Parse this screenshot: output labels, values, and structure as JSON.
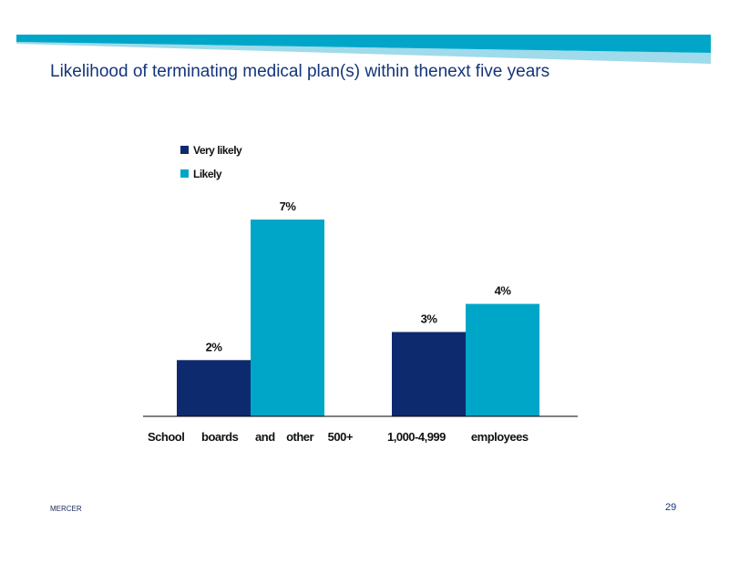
{
  "slide": {
    "title": "Likelihood of terminating medical plan(s) within thenext five years",
    "footer_brand": "MERCER",
    "page_number": "29"
  },
  "colors": {
    "accent_band": "#00a6c8",
    "accent_band_light": "#9fdbea",
    "title_color": "#14357a"
  },
  "chart_data": {
    "type": "bar",
    "categories": [
      "School      boards      and    other     500+",
      "1,000-4,999         employees"
    ],
    "series": [
      {
        "name": "Very      likely",
        "values": [
          2,
          3
        ],
        "labels": [
          "2%",
          "3%"
        ],
        "color": "#0e2a6e"
      },
      {
        "name": "Likely",
        "values": [
          7,
          4
        ],
        "labels": [
          "7%",
          "4%"
        ],
        "color": "#00a6c8"
      }
    ],
    "ylim": [
      0,
      7
    ],
    "legend_position": "top-left",
    "grid": false,
    "title": "",
    "xlabel": "",
    "ylabel": ""
  }
}
